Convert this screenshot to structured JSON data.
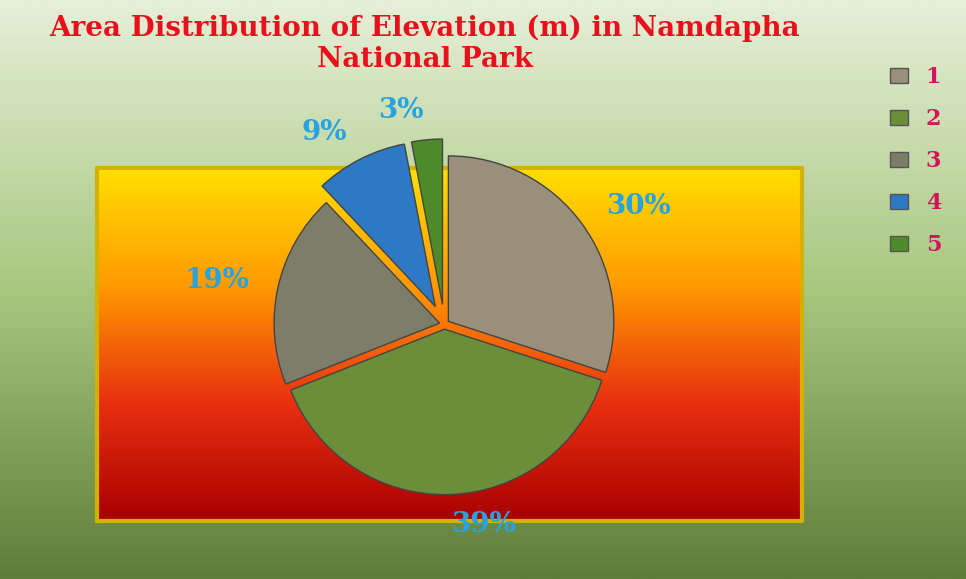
{
  "chart_data": {
    "type": "pie",
    "title": "Area Distribution of Elevation (m) in Namdapha National Park",
    "categories": [
      "1",
      "2",
      "3",
      "4",
      "5"
    ],
    "values": [
      30,
      39,
      19,
      9,
      3
    ],
    "value_labels": [
      "30%",
      "39%",
      "19%",
      "9%",
      "3%"
    ],
    "colors": [
      "#9a8f7a",
      "#6b8e3a",
      "#7d7d6a",
      "#2f78c4",
      "#4f8a2a"
    ],
    "data_labels": true,
    "legend": "upper right"
  }
}
